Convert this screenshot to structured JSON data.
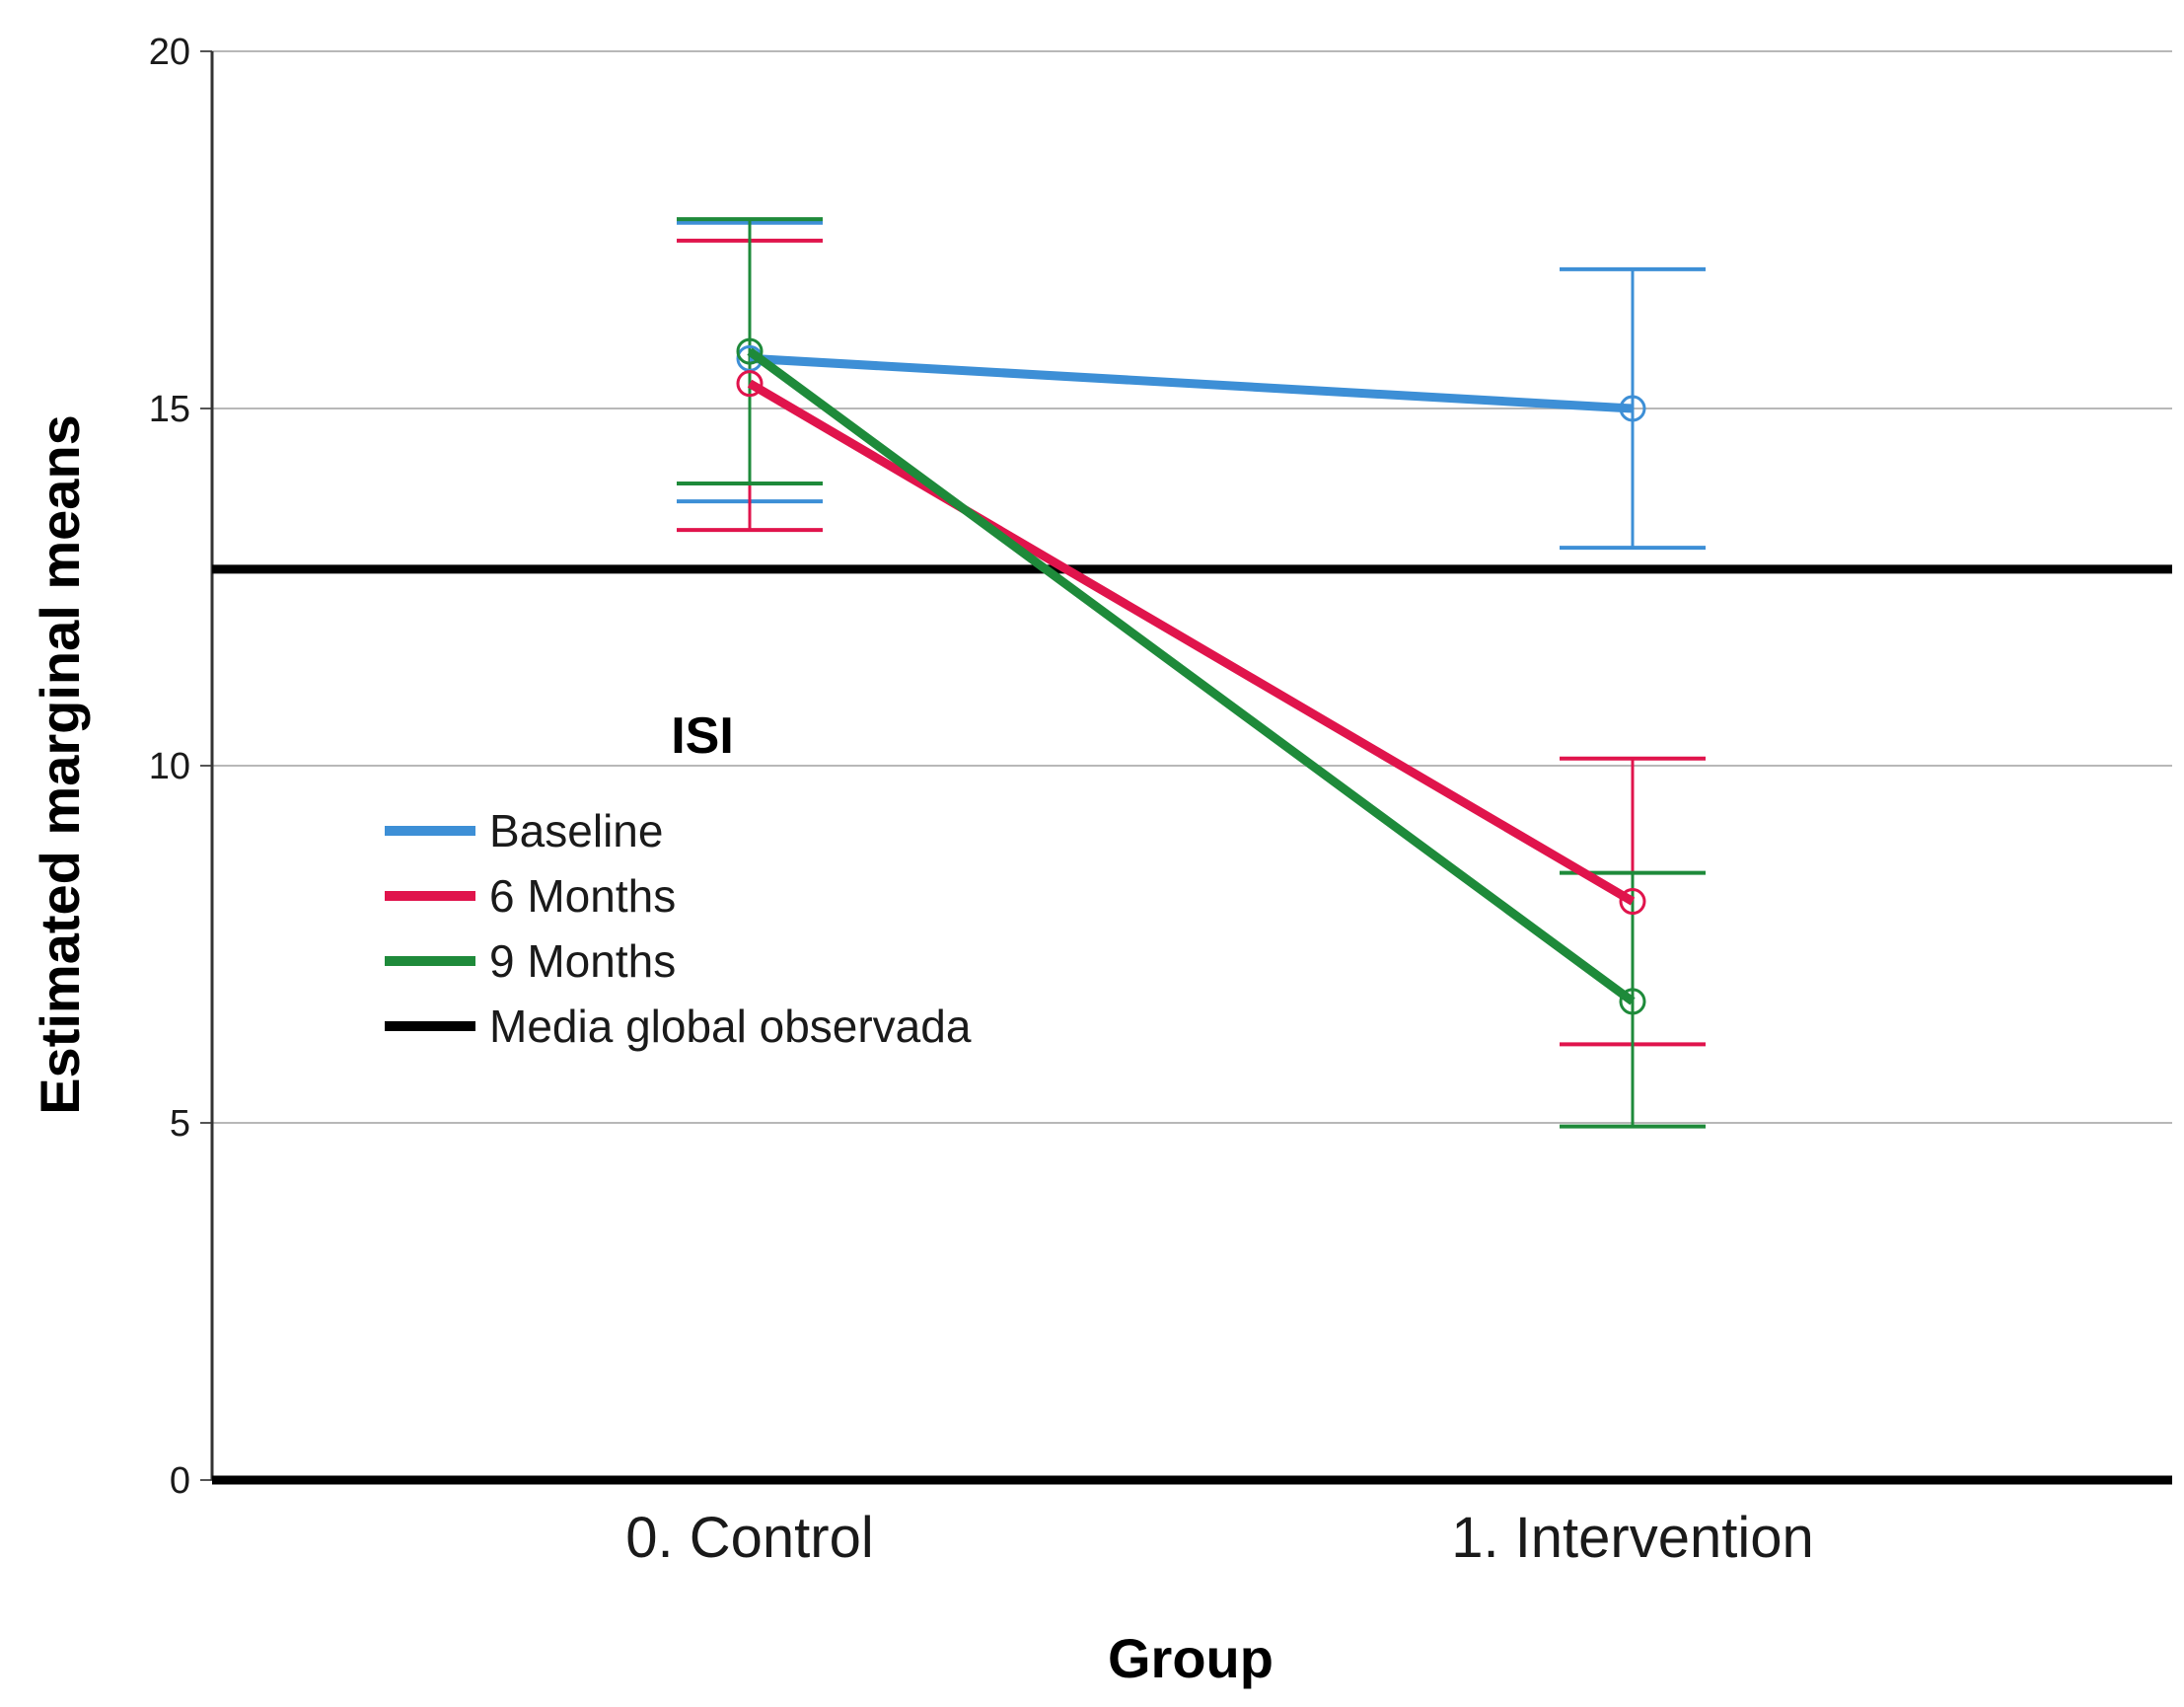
{
  "chart_data": {
    "type": "line",
    "title": "",
    "xlabel": "Group",
    "ylabel": "Estimated marginal means",
    "categories": [
      "0. Control",
      "1. Intervention"
    ],
    "ylim": [
      0,
      20
    ],
    "yticks": [
      0,
      5,
      10,
      15,
      20
    ],
    "grid": true,
    "legend": {
      "title": "ISI",
      "placement": "center-left",
      "entries": [
        "Baseline",
        "6 Months",
        "9 Months",
        "Media global observada"
      ]
    },
    "series": [
      {
        "name": "Baseline",
        "color": "#3d8fd6",
        "values": [
          15.7,
          15.0
        ],
        "ci_low": [
          13.7,
          13.05
        ],
        "ci_high": [
          17.6,
          16.95
        ]
      },
      {
        "name": "6 Months",
        "color": "#e0144c",
        "values": [
          15.35,
          8.1
        ],
        "ci_low": [
          13.3,
          6.1
        ],
        "ci_high": [
          17.35,
          10.1
        ]
      },
      {
        "name": "9 Months",
        "color": "#1e8a3a",
        "values": [
          15.8,
          6.7
        ],
        "ci_low": [
          13.95,
          4.95
        ],
        "ci_high": [
          17.65,
          8.5
        ]
      }
    ],
    "reference_line": {
      "name": "Media global observada",
      "value": 12.75,
      "color": "#000000"
    }
  }
}
